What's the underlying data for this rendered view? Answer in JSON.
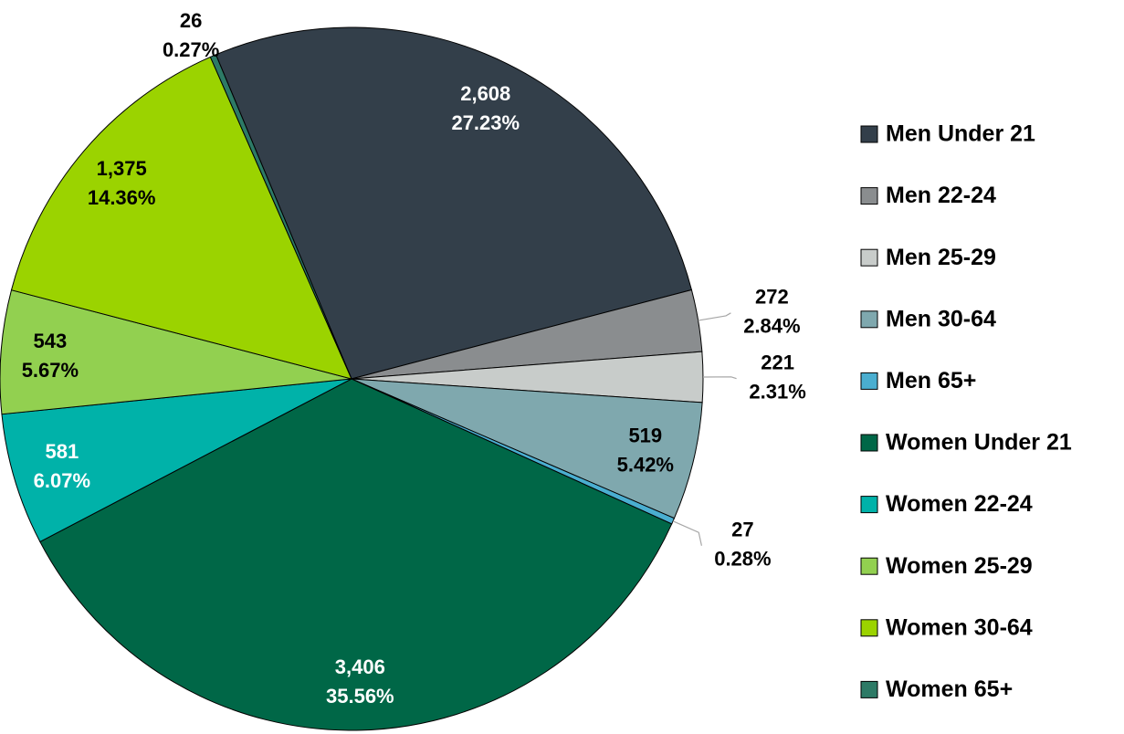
{
  "chart_data": {
    "type": "pie",
    "categories": [
      "Men Under 21",
      "Men 22-24",
      "Men 25-29",
      "Men 30-64",
      "Men 65+",
      "Women Under 21",
      "Women 22-24",
      "Women 25-29",
      "Women 30-64",
      "Women 65+"
    ],
    "values": [
      2608,
      272,
      221,
      519,
      27,
      3406,
      581,
      543,
      1375,
      26
    ],
    "value_labels": [
      "2,608",
      "272",
      "221",
      "519",
      "27",
      "3,406",
      "581",
      "543",
      "1,375",
      "26"
    ],
    "percent_labels": [
      "27.23%",
      "2.84%",
      "2.31%",
      "5.42%",
      "0.28%",
      "35.56%",
      "6.07%",
      "5.67%",
      "14.36%",
      "0.27%"
    ],
    "colors": [
      "#333f4a",
      "#8a8d8f",
      "#c8ccca",
      "#7fa8ae",
      "#4aaed0",
      "#006747",
      "#00b2a9",
      "#92d050",
      "#9bd300",
      "#2d7a66"
    ],
    "legend": "right"
  }
}
